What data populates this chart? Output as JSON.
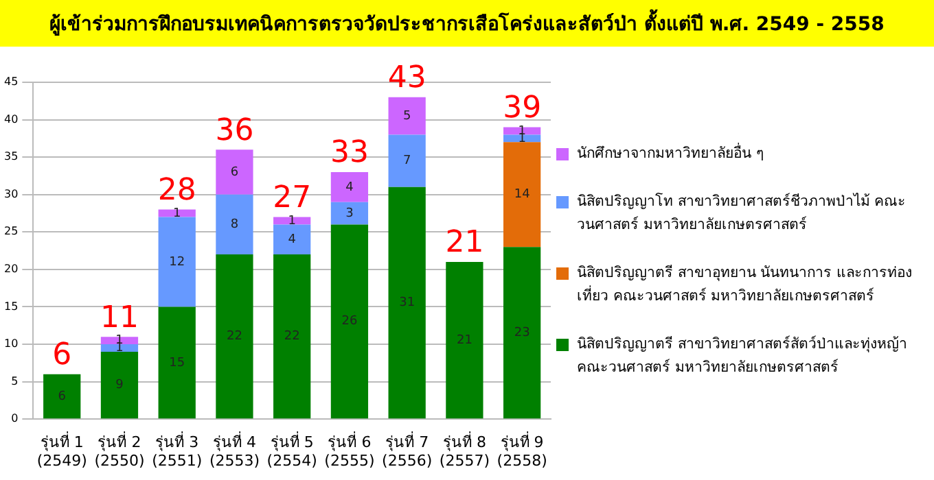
{
  "chart_data": {
    "type": "bar",
    "title": "ผู้เข้าร่วมการฝึกอบรมเทคนิคการตรวจวัดประชากรเสือโคร่งและสัตว์ป่า ตั้งแต่ปี พ.ศ. 2549 - 2558",
    "categories": [
      "รุ่นที่ 1 (2549)",
      "รุ่นที่ 2 (2550)",
      "รุ่นที่ 3 (2551)",
      "รุ่นที่ 4 (2553)",
      "รุ่นที่ 5 (2554)",
      "รุ่นที่ 6 (2555)",
      "รุ่นที่ 7 (2556)",
      "รุ่นที่ 8 (2557)",
      "รุ่นที่ 9 (2558)"
    ],
    "series": [
      {
        "name": "นิสิตปริญญาตรี สาขาวิทยาศาสตร์สัตว์ป่าและทุ่งหญ้า คณะวนศาสตร์ มหาวิทยาลัยเกษตรศาสตร์",
        "color": "#008000",
        "values": [
          6,
          9,
          15,
          22,
          22,
          26,
          31,
          21,
          23
        ]
      },
      {
        "name": "นิสิตปริญญาตรี สาขาอุทยาน นันทนาการ และการท่องเที่ยว คณะวนศาสตร์ มหาวิทยาลัยเกษตรศาสตร์",
        "color": "#e36c09",
        "values": [
          null,
          null,
          null,
          null,
          null,
          null,
          null,
          null,
          14
        ]
      },
      {
        "name": "นิสิตปริญญาโท สาขาวิทยาศาสตร์ชีวภาพป่าไม้ คณะวนศาสตร์ มหาวิทยาลัยเกษตรศาสตร์",
        "color": "#6699ff",
        "values": [
          null,
          1,
          12,
          8,
          4,
          3,
          7,
          null,
          1
        ]
      },
      {
        "name": "นักศึกษาจากมหาวิทยาลัยอื่น ๆ",
        "color": "#cc66ff",
        "values": [
          null,
          1,
          1,
          6,
          1,
          4,
          5,
          null,
          1
        ]
      }
    ],
    "stacked": true,
    "data_labels": true,
    "totals": [
      "6",
      "11",
      "28",
      "36",
      "27",
      "33",
      "43",
      "21",
      "39"
    ],
    "ylim": [
      0,
      45
    ],
    "yticks": [
      0,
      5,
      10,
      15,
      20,
      25,
      30,
      35,
      40,
      45
    ],
    "grid": "y",
    "legend": "right"
  }
}
